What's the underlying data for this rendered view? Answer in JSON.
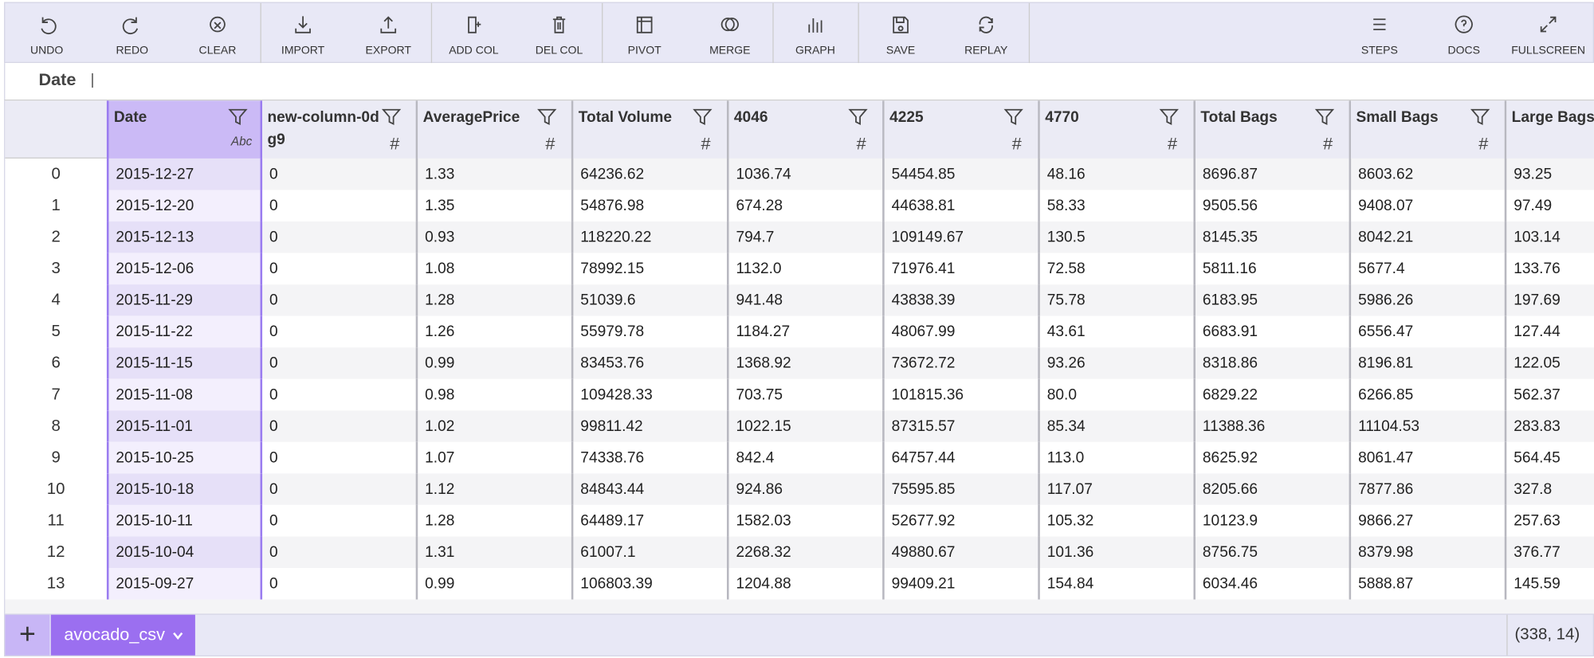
{
  "toolbar": {
    "left": [
      "UNDO",
      "REDO",
      "CLEAR",
      "IMPORT",
      "EXPORT",
      "ADD COL",
      "DEL COL",
      "PIVOT",
      "MERGE",
      "GRAPH",
      "SAVE",
      "REPLAY"
    ],
    "right": [
      "STEPS",
      "DOCS",
      "FULLSCREEN"
    ]
  },
  "formula_bar": {
    "column": "Date"
  },
  "table": {
    "columns": [
      {
        "name": "Date",
        "type": "Abc"
      },
      {
        "name": "new-column-0dg9",
        "type": "#"
      },
      {
        "name": "AveragePrice",
        "type": "#"
      },
      {
        "name": "Total Volume",
        "type": "#"
      },
      {
        "name": "4046",
        "type": "#"
      },
      {
        "name": "4225",
        "type": "#"
      },
      {
        "name": "4770",
        "type": "#"
      },
      {
        "name": "Total Bags",
        "type": "#"
      },
      {
        "name": "Small Bags",
        "type": "#"
      },
      {
        "name": "Large Bags"
      }
    ],
    "rows": [
      {
        "index": "0",
        "cells": [
          "2015-12-27",
          "0",
          "1.33",
          "64236.62",
          "1036.74",
          "54454.85",
          "48.16",
          "8696.87",
          "8603.62",
          "93.25"
        ]
      },
      {
        "index": "1",
        "cells": [
          "2015-12-20",
          "0",
          "1.35",
          "54876.98",
          "674.28",
          "44638.81",
          "58.33",
          "9505.56",
          "9408.07",
          "97.49"
        ]
      },
      {
        "index": "2",
        "cells": [
          "2015-12-13",
          "0",
          "0.93",
          "118220.22",
          "794.7",
          "109149.67",
          "130.5",
          "8145.35",
          "8042.21",
          "103.14"
        ]
      },
      {
        "index": "3",
        "cells": [
          "2015-12-06",
          "0",
          "1.08",
          "78992.15",
          "1132.0",
          "71976.41",
          "72.58",
          "5811.16",
          "5677.4",
          "133.76"
        ]
      },
      {
        "index": "4",
        "cells": [
          "2015-11-29",
          "0",
          "1.28",
          "51039.6",
          "941.48",
          "43838.39",
          "75.78",
          "6183.95",
          "5986.26",
          "197.69"
        ]
      },
      {
        "index": "5",
        "cells": [
          "2015-11-22",
          "0",
          "1.26",
          "55979.78",
          "1184.27",
          "48067.99",
          "43.61",
          "6683.91",
          "6556.47",
          "127.44"
        ]
      },
      {
        "index": "6",
        "cells": [
          "2015-11-15",
          "0",
          "0.99",
          "83453.76",
          "1368.92",
          "73672.72",
          "93.26",
          "8318.86",
          "8196.81",
          "122.05"
        ]
      },
      {
        "index": "7",
        "cells": [
          "2015-11-08",
          "0",
          "0.98",
          "109428.33",
          "703.75",
          "101815.36",
          "80.0",
          "6829.22",
          "6266.85",
          "562.37"
        ]
      },
      {
        "index": "8",
        "cells": [
          "2015-11-01",
          "0",
          "1.02",
          "99811.42",
          "1022.15",
          "87315.57",
          "85.34",
          "11388.36",
          "11104.53",
          "283.83"
        ]
      },
      {
        "index": "9",
        "cells": [
          "2015-10-25",
          "0",
          "1.07",
          "74338.76",
          "842.4",
          "64757.44",
          "113.0",
          "8625.92",
          "8061.47",
          "564.45"
        ]
      },
      {
        "index": "10",
        "cells": [
          "2015-10-18",
          "0",
          "1.12",
          "84843.44",
          "924.86",
          "75595.85",
          "117.07",
          "8205.66",
          "7877.86",
          "327.8"
        ]
      },
      {
        "index": "11",
        "cells": [
          "2015-10-11",
          "0",
          "1.28",
          "64489.17",
          "1582.03",
          "52677.92",
          "105.32",
          "10123.9",
          "9866.27",
          "257.63"
        ]
      },
      {
        "index": "12",
        "cells": [
          "2015-10-04",
          "0",
          "1.31",
          "61007.1",
          "2268.32",
          "49880.67",
          "101.36",
          "8756.75",
          "8379.98",
          "376.77"
        ]
      },
      {
        "index": "13",
        "cells": [
          "2015-09-27",
          "0",
          "0.99",
          "106803.39",
          "1204.88",
          "99409.21",
          "154.84",
          "6034.46",
          "5888.87",
          "145.59"
        ]
      }
    ]
  },
  "footer": {
    "tab": "avocado_csv",
    "shape": "(338, 14)"
  }
}
